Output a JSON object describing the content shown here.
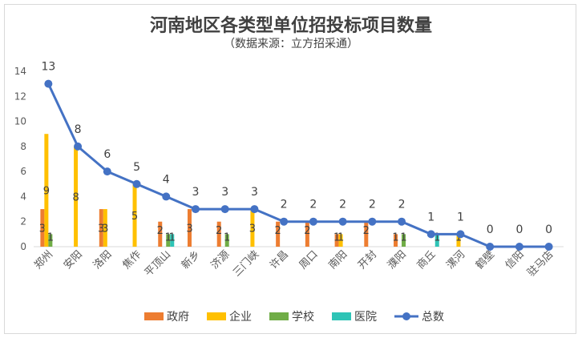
{
  "chart_data": {
    "type": "bar",
    "title": "河南地区各类型单位招投标项目数量",
    "subtitle": "（数据来源：立方招采通）",
    "categories": [
      "郑州",
      "安阳",
      "洛阳",
      "焦作",
      "平顶山",
      "新乡",
      "济源",
      "三门峡",
      "许昌",
      "周口",
      "南阳",
      "开封",
      "濮阳",
      "商丘",
      "漯河",
      "鹤壁",
      "信阳",
      "驻马店"
    ],
    "series": [
      {
        "name": "政府",
        "type": "bar",
        "color": "#ed7d31",
        "values": [
          3,
          0,
          3,
          0,
          2,
          3,
          2,
          0,
          2,
          2,
          1,
          2,
          1,
          0,
          0,
          0,
          0,
          0
        ]
      },
      {
        "name": "企业",
        "type": "bar",
        "color": "#ffc000",
        "values": [
          9,
          8,
          3,
          5,
          0,
          0,
          0,
          3,
          0,
          0,
          1,
          0,
          0,
          0,
          1,
          0,
          0,
          0
        ]
      },
      {
        "name": "学校",
        "type": "bar",
        "color": "#70ad47",
        "values": [
          1,
          0,
          0,
          0,
          1,
          0,
          1,
          0,
          0,
          0,
          0,
          0,
          1,
          0,
          0,
          0,
          0,
          0
        ]
      },
      {
        "name": "医院",
        "type": "bar",
        "color": "#2ec4b6",
        "values": [
          0,
          0,
          0,
          0,
          1,
          0,
          0,
          0,
          0,
          0,
          0,
          0,
          0,
          1,
          0,
          0,
          0,
          0
        ]
      },
      {
        "name": "总数",
        "type": "line",
        "color": "#4472c4",
        "values": [
          13,
          8,
          6,
          5,
          4,
          3,
          3,
          3,
          2,
          2,
          2,
          2,
          2,
          1,
          1,
          0,
          0,
          0
        ]
      }
    ],
    "ylim": [
      0,
      14
    ],
    "yticks": [
      0,
      2,
      4,
      6,
      8,
      10,
      12,
      14
    ],
    "grid": false,
    "legend": "bottom"
  }
}
